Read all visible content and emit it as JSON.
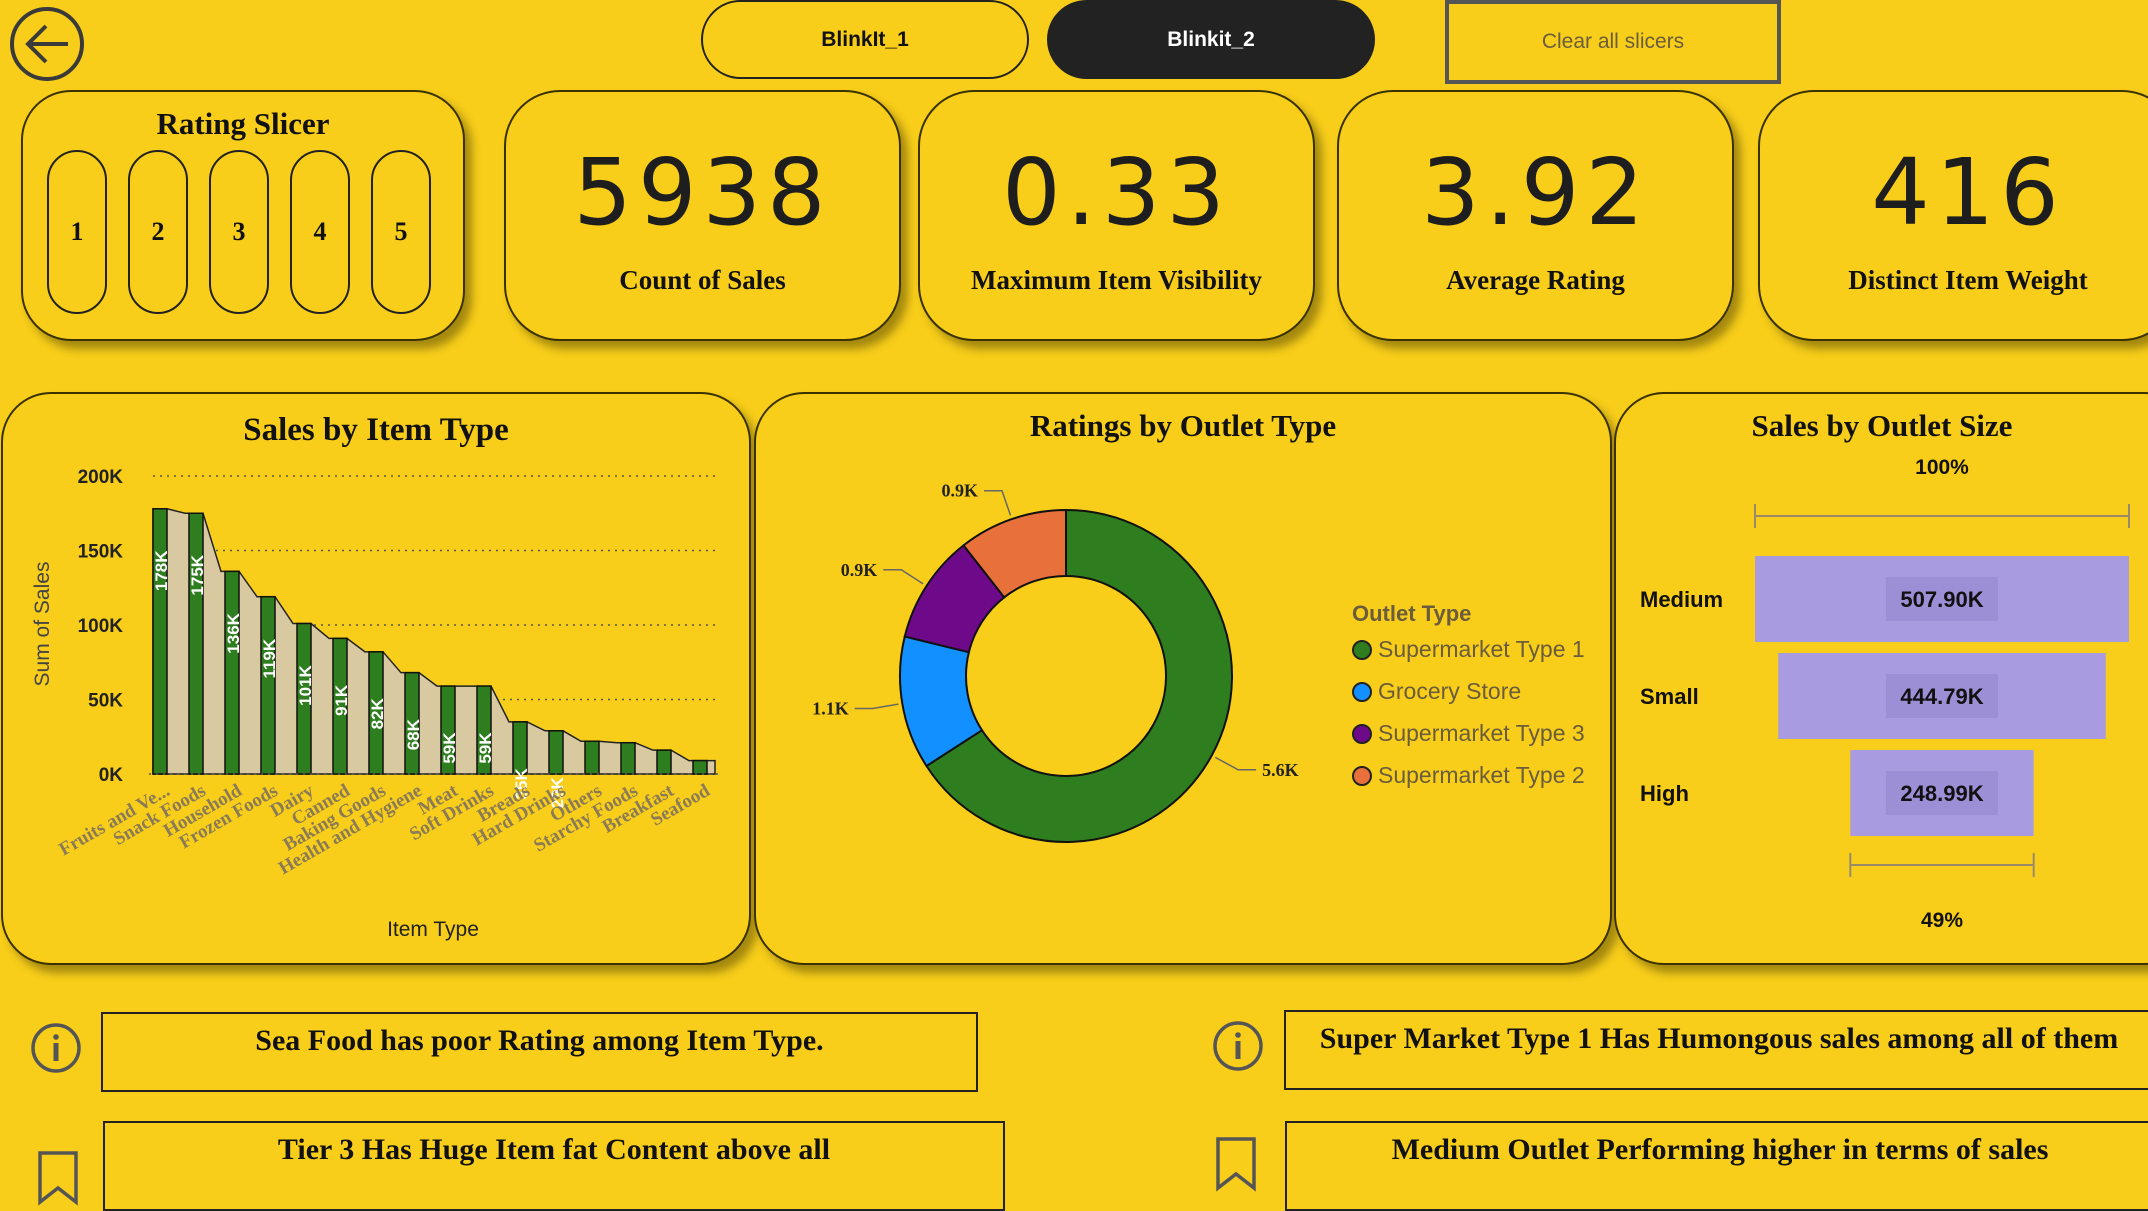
{
  "nav": {
    "back_icon": "arrow-left-circle-icon",
    "tab1": "BlinkIt_1",
    "tab2": "Blinkit_2",
    "clear": "Clear all slicers"
  },
  "slicer": {
    "title": "Rating Slicer",
    "options": [
      "1",
      "2",
      "3",
      "4",
      "5"
    ]
  },
  "kpis": [
    {
      "value": "5938",
      "label": "Count of Sales"
    },
    {
      "value": "0.33",
      "label": "Maximum Item Visibility"
    },
    {
      "value": "3.92",
      "label": "Average Rating"
    },
    {
      "value": "416",
      "label": "Distinct Item Weight"
    }
  ],
  "colors": {
    "background": "#F8CE1A",
    "bar_dark": "#2E7D1E",
    "bar_light": "#D9C9A0",
    "supermarket1": "#2E7D1E",
    "grocery": "#1290FF",
    "supermarket3": "#6E0A8A",
    "supermarket2": "#E8703A",
    "funnel": "#A99BE0",
    "tab_active": "#222222"
  },
  "chart_data": [
    {
      "type": "bar",
      "title": "Sales by Item Type",
      "xlabel": "Item Type",
      "ylabel": "Sum of Sales",
      "ylim": [
        0,
        200000
      ],
      "yticks": [
        "0K",
        "50K",
        "100K",
        "150K",
        "200K"
      ],
      "categories": [
        "Fruits and Ve...",
        "Snack Foods",
        "Household",
        "Frozen Foods",
        "Dairy",
        "Canned",
        "Baking Goods",
        "Health and Hygiene",
        "Meat",
        "Soft Drinks",
        "Breads",
        "Hard Drinks",
        "Others",
        "Starchy Foods",
        "Breakfast",
        "Seafood"
      ],
      "values": [
        178000,
        175000,
        136000,
        119000,
        101000,
        91000,
        82000,
        68000,
        59000,
        59000,
        35000,
        29000,
        22000,
        21000,
        16000,
        9000
      ],
      "data_labels": [
        "178K",
        "175K",
        "136K",
        "119K",
        "101K",
        "91K",
        "82K",
        "68K",
        "59K",
        "59K",
        "35K",
        "29K",
        "",
        "",
        "",
        ""
      ],
      "grid": true
    },
    {
      "type": "pie",
      "title": "Ratings by Outlet Type",
      "legend_title": "Outlet Type",
      "legend_position": "right",
      "categories": [
        "Supermarket Type 1",
        "Grocery Store",
        "Supermarket Type 3",
        "Supermarket Type 2"
      ],
      "values": [
        5600,
        1100,
        900,
        900
      ],
      "data_labels": [
        "5.6K",
        "1.1K",
        "0.9K",
        "0.9K"
      ]
    },
    {
      "type": "bar",
      "subtype": "funnel",
      "title": "Sales by Outlet Size",
      "categories": [
        "Medium",
        "Small",
        "High"
      ],
      "values": [
        507900,
        444790,
        248990
      ],
      "data_labels": [
        "507.90K",
        "444.79K",
        "248.99K"
      ],
      "top_percent": "100%",
      "bottom_percent": "49%"
    }
  ],
  "insights": [
    {
      "icon": "info-icon",
      "text": "Sea Food has poor Rating among Item Type."
    },
    {
      "icon": "info-icon",
      "text": "Super Market Type 1 Has Humongous sales among all of them"
    },
    {
      "icon": "bookmark-icon",
      "text": "Tier 3 Has Huge Item fat Content above all"
    },
    {
      "icon": "bookmark-icon",
      "text": "Medium Outlet Performing higher in terms of sales"
    }
  ]
}
